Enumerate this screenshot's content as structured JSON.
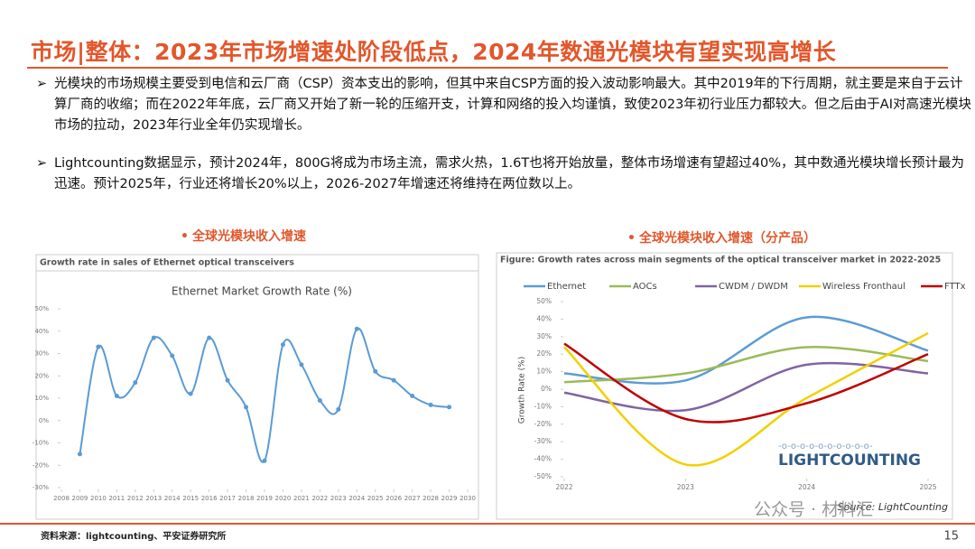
{
  "header": {
    "title": "市场|整体：2023年市场增速处阶段低点，2024年数通光模块有望实现高增长"
  },
  "bullets": [
    "光模块的市场规模主要受到电信和云厂商（CSP）资本支出的影响，但其中来自CSP方面的投入波动影响最大。其中2019年的下行周期，就主要是来自于云计算厂商的收缩；而在2022年年底，云厂商又开始了新一轮的压缩开支，计算和网络的投入均谨慎，致使2023年初行业压力都较大。但之后由于AI对高速光模块市场的拉动，2023年行业全年仍实现增长。",
    "Lightcounting数据显示，预计2024年，800G将成为市场主流，需求火热，1.6T也将开始放量，整体市场增速有望超过40%，其中数通光模块增长预计最为迅速。预计2025年，行业还将增长20%以上，2026-2027年增速还将维持在两位数以上。"
  ],
  "chart_data": [
    {
      "type": "line",
      "section_title": "全球光模块收入增速",
      "figure_title": "Growth rate in sales of Ethernet optical transceivers",
      "title": "Ethernet Market Growth Rate (%)",
      "x": [
        2009,
        2010,
        2011,
        2012,
        2013,
        2014,
        2015,
        2016,
        2017,
        2018,
        2019,
        2020,
        2021,
        2022,
        2023,
        2024,
        2025,
        2026,
        2027,
        2028,
        2029
      ],
      "values": [
        -15,
        33,
        11,
        17,
        37,
        29,
        12,
        37,
        18,
        6,
        -18,
        34,
        25,
        9,
        5,
        41,
        22,
        18,
        11,
        7,
        6
      ],
      "color": "#5b9bd5",
      "xlim": [
        2008,
        2030
      ],
      "xticks": [
        2008,
        2009,
        2010,
        2011,
        2012,
        2013,
        2014,
        2015,
        2016,
        2017,
        2018,
        2019,
        2020,
        2021,
        2022,
        2023,
        2024,
        2025,
        2026,
        2027,
        2028,
        2029,
        2030
      ],
      "ylim": [
        -30,
        50
      ],
      "yticks": [
        {
          "value": -30,
          "label": "-30%"
        },
        {
          "value": -20,
          "label": "-20%"
        },
        {
          "value": -10,
          "label": "-10%"
        },
        {
          "value": 0,
          "label": "0%"
        },
        {
          "value": 10,
          "label": "10%"
        },
        {
          "value": 20,
          "label": "20%"
        },
        {
          "value": 30,
          "label": "30%"
        },
        {
          "value": 40,
          "label": "40%"
        },
        {
          "value": 50,
          "label": "50%"
        }
      ],
      "grid": false
    },
    {
      "type": "line",
      "section_title": "全球光模块收入增速（分产品）",
      "figure_title": "Figure: Growth rates across main segments of the optical transceiver market in 2022-2025",
      "y_label": "Growth Rate (%)",
      "source": "Source: LightCounting",
      "logo": "LIGHTCOUNTING",
      "x": [
        2022,
        2023,
        2024,
        2025
      ],
      "series": [
        {
          "name": "Ethernet",
          "color": "#5b9bd5",
          "values": [
            9,
            5,
            41,
            22
          ]
        },
        {
          "name": "AOCs",
          "color": "#9bbb59",
          "values": [
            4,
            9,
            24,
            16
          ]
        },
        {
          "name": "CWDM / DWDM",
          "color": "#8064a2",
          "values": [
            -2,
            -12,
            14,
            9
          ]
        },
        {
          "name": "Wireless Fronthaul",
          "color": "#f2d000",
          "values": [
            24,
            -43,
            -5,
            32
          ]
        },
        {
          "name": "FTTx",
          "color": "#c00000",
          "values": [
            26,
            -17,
            -8,
            20
          ]
        }
      ],
      "xlim": [
        2022,
        2025
      ],
      "xticks": [
        2022,
        2023,
        2024,
        2025
      ],
      "ylim": [
        -50,
        50
      ],
      "yticks": [
        {
          "value": -50,
          "label": "-50%"
        },
        {
          "value": -40,
          "label": "-40%"
        },
        {
          "value": -30,
          "label": "-30%"
        },
        {
          "value": -20,
          "label": "-20%"
        },
        {
          "value": -10,
          "label": "-10%"
        },
        {
          "value": 0,
          "label": "0%"
        },
        {
          "value": 10,
          "label": "10%"
        },
        {
          "value": 20,
          "label": "20%"
        },
        {
          "value": 30,
          "label": "30%"
        },
        {
          "value": 40,
          "label": "40%"
        },
        {
          "value": 50,
          "label": "50%"
        }
      ],
      "grid": false
    }
  ],
  "footer": {
    "source": "资料来源：lightcounting、平安证券研究所",
    "page": "15",
    "watermark": "公众号 · 材料汇"
  }
}
